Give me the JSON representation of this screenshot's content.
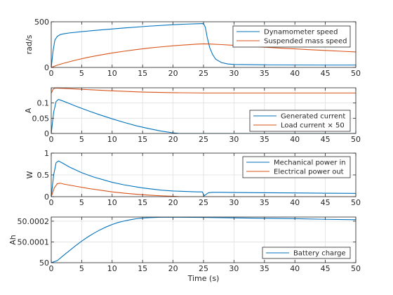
{
  "chart_data": [
    {
      "type": "line",
      "ylabel": "rad/s",
      "xlim": [
        0,
        50
      ],
      "ylim": [
        0,
        500
      ],
      "yticks": [
        0,
        500
      ],
      "ytick_labels": [
        "0",
        "500"
      ],
      "xticks": [
        0,
        5,
        10,
        15,
        20,
        25,
        30,
        35,
        40,
        45,
        50
      ],
      "grid": true,
      "legend": "top-right",
      "series": [
        {
          "name": "Dynamometer speed",
          "color": "#0072BD",
          "x": [
            0,
            0.3,
            0.6,
            1,
            1.5,
            2,
            3,
            5,
            8,
            12,
            16,
            20,
            22,
            24,
            25,
            25.3,
            25.6,
            26,
            26.5,
            27,
            28,
            29,
            30,
            35,
            40,
            45,
            50
          ],
          "y": [
            0,
            180,
            300,
            340,
            360,
            368,
            378,
            392,
            410,
            432,
            452,
            468,
            474,
            478,
            480,
            440,
            330,
            220,
            140,
            90,
            52,
            38,
            32,
            28,
            27,
            26,
            26
          ]
        },
        {
          "name": "Suspended mass speed",
          "color": "#D95319",
          "x": [
            0,
            1,
            2,
            4,
            6,
            8,
            10,
            12,
            14,
            16,
            18,
            20,
            22,
            24,
            25,
            26,
            28,
            30,
            32,
            35,
            38,
            40,
            42,
            45,
            48,
            50
          ],
          "y": [
            0,
            25,
            45,
            80,
            110,
            135,
            158,
            178,
            196,
            212,
            225,
            237,
            247,
            255,
            258,
            256,
            250,
            242,
            234,
            222,
            210,
            203,
            196,
            186,
            176,
            170
          ]
        }
      ]
    },
    {
      "type": "line",
      "ylabel": "A",
      "xlim": [
        0,
        50
      ],
      "ylim": [
        0,
        0.15
      ],
      "yticks": [
        0,
        0.05,
        0.1
      ],
      "ytick_labels": [
        "0",
        "0.05",
        "0.1"
      ],
      "xticks": [
        0,
        5,
        10,
        15,
        20,
        25,
        30,
        35,
        40,
        45,
        50
      ],
      "grid": true,
      "legend": "bottom-right",
      "series": [
        {
          "name": "Generated current",
          "color": "#0072BD",
          "x": [
            0,
            0.4,
            0.8,
            1.2,
            2,
            3,
            4,
            6,
            8,
            10,
            12,
            14,
            16,
            18,
            20,
            21,
            25,
            30,
            35,
            40,
            45,
            50
          ],
          "y": [
            0,
            0.07,
            0.105,
            0.112,
            0.106,
            0.098,
            0.09,
            0.075,
            0.061,
            0.048,
            0.036,
            0.025,
            0.016,
            0.008,
            0.002,
            0,
            0,
            0,
            0,
            0,
            0,
            0
          ]
        },
        {
          "name": "Load current × 50",
          "color": "#D95319",
          "x": [
            0,
            0.3,
            0.6,
            1,
            2,
            5,
            10,
            15,
            20,
            25,
            30,
            35,
            40,
            45,
            50
          ],
          "y": [
            0.132,
            0.145,
            0.149,
            0.149,
            0.148,
            0.145,
            0.14,
            0.136,
            0.134,
            0.133,
            0.133,
            0.133,
            0.133,
            0.133,
            0.133
          ]
        }
      ]
    },
    {
      "type": "line",
      "ylabel": "W",
      "xlim": [
        0,
        50
      ],
      "ylim": [
        0,
        1
      ],
      "yticks": [
        0,
        0.5,
        1
      ],
      "ytick_labels": [
        "0",
        "0.5",
        "1"
      ],
      "xticks": [
        0,
        5,
        10,
        15,
        20,
        25,
        30,
        35,
        40,
        45,
        50
      ],
      "grid": true,
      "legend": "top-right",
      "series": [
        {
          "name": "Mechanical power in",
          "color": "#0072BD",
          "x": [
            0,
            0.4,
            0.8,
            1.2,
            2,
            3,
            5,
            7,
            10,
            12,
            15,
            18,
            20,
            22,
            24,
            24.8,
            25.1,
            25.4,
            25.8,
            26.5,
            28,
            30,
            35,
            40,
            45,
            50
          ],
          "y": [
            0,
            0.5,
            0.78,
            0.82,
            0.76,
            0.68,
            0.55,
            0.45,
            0.33,
            0.27,
            0.2,
            0.15,
            0.13,
            0.12,
            0.11,
            0.11,
            0.02,
            0.05,
            0.09,
            0.1,
            0.1,
            0.095,
            0.09,
            0.085,
            0.08,
            0.075
          ]
        },
        {
          "name": "Electrical power out",
          "color": "#D95319",
          "x": [
            0,
            0.5,
            1,
            1.5,
            2,
            4,
            6,
            8,
            10,
            12,
            14,
            16,
            18,
            20,
            21,
            25,
            30,
            35,
            40,
            45,
            50
          ],
          "y": [
            0,
            0.2,
            0.3,
            0.31,
            0.29,
            0.24,
            0.19,
            0.15,
            0.11,
            0.08,
            0.055,
            0.035,
            0.02,
            0.01,
            0,
            0,
            0,
            0,
            0,
            0,
            0
          ]
        }
      ]
    },
    {
      "type": "line",
      "ylabel": "Ah",
      "xlabel": "Time (s)",
      "xlim": [
        0,
        50
      ],
      "ylim": [
        50,
        50.00022
      ],
      "yticks": [
        50,
        50.0001,
        50.0002
      ],
      "ytick_labels": [
        "50",
        "50.0001",
        "50.0002"
      ],
      "xticks": [
        0,
        5,
        10,
        15,
        20,
        25,
        30,
        35,
        40,
        45,
        50
      ],
      "grid": true,
      "legend": "bottom-right",
      "series": [
        {
          "name": "Battery charge",
          "color": "#0072BD",
          "x": [
            0,
            1,
            2,
            3,
            4,
            5,
            6,
            7,
            8,
            9,
            10,
            11,
            12,
            13,
            14,
            15,
            16,
            17,
            18,
            19,
            20,
            21,
            25,
            30,
            35,
            40,
            45,
            50
          ],
          "y": [
            50,
            50.00001,
            50.000035,
            50.000058,
            50.000082,
            50.000104,
            50.000124,
            50.000142,
            50.000158,
            50.000172,
            50.000184,
            50.000194,
            50.000201,
            50.000207,
            50.000212,
            50.000215,
            50.000217,
            50.000218,
            50.000219,
            50.000219,
            50.000219,
            50.000219,
            50.000218,
            50.000216,
            50.000214,
            50.000212,
            50.000209,
            50.000207
          ]
        }
      ]
    }
  ]
}
